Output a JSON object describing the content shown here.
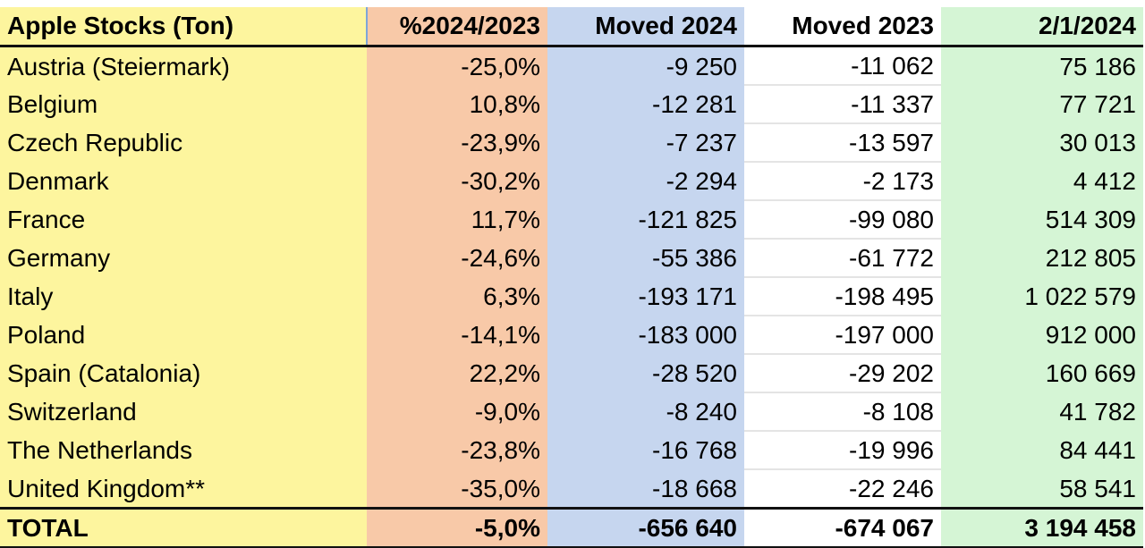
{
  "table": {
    "header": [
      "Apple Stocks (Ton)",
      "%2024/2023",
      "Moved 2024",
      "Moved 2023",
      "2/1/2024"
    ],
    "rows": [
      [
        "Austria (Steiermark)",
        "-25,0%",
        "-9 250",
        "-11 062",
        "75 186"
      ],
      [
        "Belgium",
        "10,8%",
        "-12 281",
        "-11 337",
        "77 721"
      ],
      [
        "Czech Republic",
        "-23,9%",
        "-7 237",
        "-13 597",
        "30 013"
      ],
      [
        "Denmark",
        "-30,2%",
        "-2 294",
        "-2 173",
        "4 412"
      ],
      [
        "France",
        "11,7%",
        "-121 825",
        "-99 080",
        "514 309"
      ],
      [
        "Germany",
        "-24,6%",
        "-55 386",
        "-61 772",
        "212 805"
      ],
      [
        "Italy",
        "6,3%",
        "-193 171",
        "-198 495",
        "1 022 579"
      ],
      [
        "Poland",
        "-14,1%",
        "-183 000",
        "-197 000",
        "912 000"
      ],
      [
        "Spain (Catalonia)",
        "22,2%",
        "-28 520",
        "-29 202",
        "160 669"
      ],
      [
        "Switzerland",
        "-9,0%",
        "-8 240",
        "-8 108",
        "41 782"
      ],
      [
        "The Netherlands",
        "-23,8%",
        "-16 768",
        "-19 996",
        "84 441"
      ],
      [
        "United Kingdom**",
        "-35,0%",
        "-18 668",
        "-22 246",
        "58 541"
      ]
    ],
    "total": [
      "TOTAL",
      "-5,0%",
      "-656 640",
      "-674 067",
      "3 194 458"
    ]
  }
}
